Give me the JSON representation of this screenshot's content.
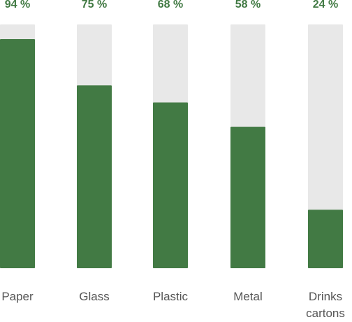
{
  "chart_data": {
    "type": "bar",
    "categories": [
      "Paper",
      "Glass",
      "Plastic",
      "Metal",
      "Drinks cartons"
    ],
    "values": [
      94,
      75,
      68,
      58,
      24
    ],
    "value_labels": [
      "94 %",
      "75 %",
      "68 %",
      "58 %",
      "24 %"
    ],
    "color": "#427a44",
    "track_color": "#e8e8e8",
    "ylim": [
      0,
      100
    ]
  }
}
